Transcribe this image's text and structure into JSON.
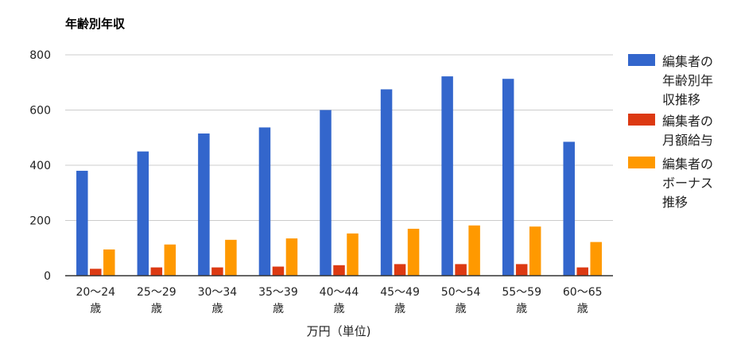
{
  "chart_data": {
    "type": "bar",
    "title": "年齢別年収",
    "xlabel": "万円（単位)",
    "ylabel": "",
    "ylim": [
      0,
      800
    ],
    "yticks": [
      0,
      200,
      400,
      600,
      800
    ],
    "grid": true,
    "legend_position": "right",
    "categories": [
      [
        "20〜24",
        "歳"
      ],
      [
        "25〜29",
        "歳"
      ],
      [
        "30〜34",
        "歳"
      ],
      [
        "35〜39",
        "歳"
      ],
      [
        "40〜44",
        "歳"
      ],
      [
        "45〜49",
        "歳"
      ],
      [
        "50〜54",
        "歳"
      ],
      [
        "55〜59",
        "歳"
      ],
      [
        "60〜65",
        "歳"
      ]
    ],
    "series": [
      {
        "name": [
          "編集者の",
          "年齢別年",
          "収推移"
        ],
        "color": "#3366cc",
        "values": [
          380,
          450,
          515,
          537,
          600,
          675,
          722,
          713,
          485
        ]
      },
      {
        "name": [
          "編集者の",
          "月額給与"
        ],
        "color": "#dc3912",
        "values": [
          25,
          30,
          30,
          33,
          38,
          42,
          42,
          42,
          30
        ]
      },
      {
        "name": [
          "編集者の",
          "ボーナス",
          "推移"
        ],
        "color": "#ff9900",
        "values": [
          95,
          113,
          130,
          135,
          153,
          170,
          182,
          178,
          122
        ]
      }
    ]
  }
}
